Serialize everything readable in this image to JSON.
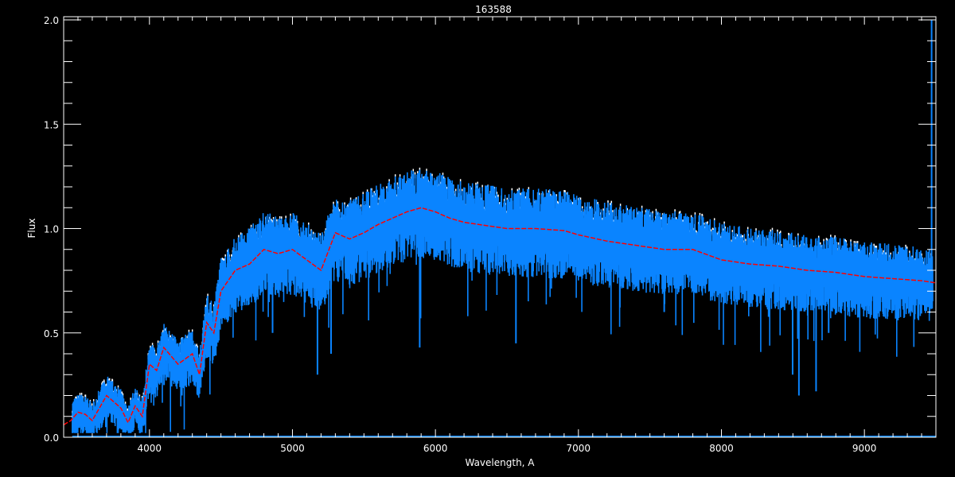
{
  "chart_data": {
    "type": "line",
    "title": "163588",
    "xlabel": "Wavelength, A",
    "ylabel": "Flux",
    "xlim": [
      3400,
      9500
    ],
    "ylim": [
      0,
      2.0
    ],
    "xticks": [
      "4000",
      "5000",
      "6000",
      "7000",
      "8000",
      "9000"
    ],
    "yticks": [
      "0.0",
      "0.5",
      "1.0",
      "1.5",
      "2.0"
    ],
    "grid": false,
    "colors": {
      "observed": "#0a84ff",
      "model": "#ff0000",
      "reference": "#ffffff",
      "background": "#000000",
      "axes": "#ffffff"
    },
    "series": [
      {
        "style": "red dashed smooth",
        "x": [
          3400,
          3450,
          3500,
          3550,
          3600,
          3650,
          3700,
          3750,
          3800,
          3850,
          3900,
          3950,
          4000,
          4050,
          4100,
          4200,
          4300,
          4350,
          4400,
          4450,
          4500,
          4600,
          4700,
          4800,
          4900,
          5000,
          5100,
          5200,
          5300,
          5400,
          5500,
          5600,
          5700,
          5800,
          5900,
          6000,
          6100,
          6200,
          6300,
          6500,
          6700,
          6900,
          7000,
          7200,
          7400,
          7600,
          7800,
          8000,
          8200,
          8400,
          8600,
          8800,
          9000,
          9200,
          9400,
          9500
        ],
        "y": [
          0.06,
          0.08,
          0.12,
          0.11,
          0.08,
          0.14,
          0.2,
          0.17,
          0.14,
          0.07,
          0.15,
          0.1,
          0.35,
          0.32,
          0.43,
          0.35,
          0.4,
          0.3,
          0.55,
          0.5,
          0.7,
          0.8,
          0.83,
          0.9,
          0.88,
          0.9,
          0.85,
          0.8,
          0.98,
          0.95,
          0.98,
          1.02,
          1.05,
          1.08,
          1.1,
          1.08,
          1.05,
          1.03,
          1.02,
          1.0,
          1.0,
          0.99,
          0.97,
          0.94,
          0.92,
          0.9,
          0.9,
          0.85,
          0.83,
          0.82,
          0.8,
          0.79,
          0.77,
          0.76,
          0.75,
          0.74
        ]
      },
      {
        "style": "blue noisy spectrum with absorption lines",
        "absorption_lines": [
          [
            3934,
            0.05
          ],
          [
            3968,
            0.06
          ],
          [
            4102,
            0.25
          ],
          [
            4227,
            0.2
          ],
          [
            4340,
            0.3
          ],
          [
            4861,
            0.5
          ],
          [
            5175,
            0.3
          ],
          [
            5270,
            0.4
          ],
          [
            5890,
            0.43
          ],
          [
            5896,
            0.57
          ],
          [
            6563,
            0.45
          ],
          [
            7600,
            0.6
          ],
          [
            8498,
            0.3
          ],
          [
            8542,
            0.2
          ],
          [
            8662,
            0.22
          ],
          [
            8750,
            0.5
          ]
        ]
      }
    ]
  }
}
